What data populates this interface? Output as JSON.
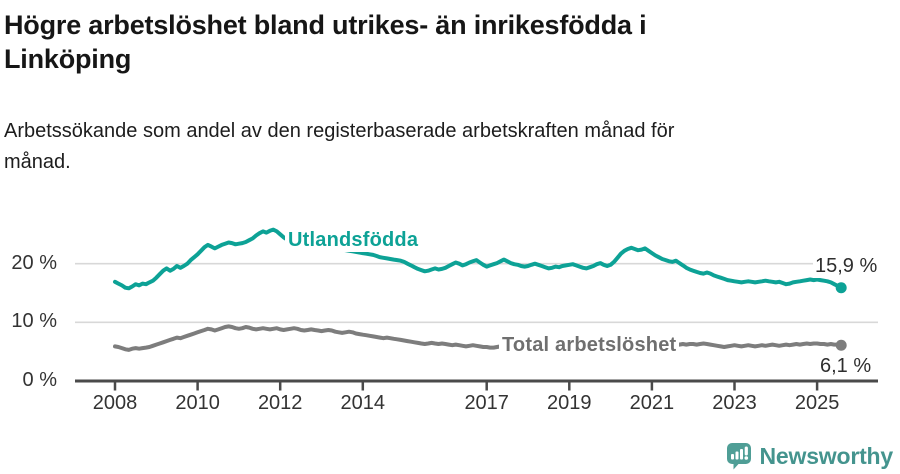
{
  "header": {
    "title_lines": [
      "Högre arbetslöshet bland utrikes- än inrikesfödda i",
      "Linköping"
    ],
    "subtitle_lines": [
      "Arbetssökande som andel av den registerbaserade arbetskraften månad för",
      "månad."
    ]
  },
  "branding": {
    "name": "Newsworthy",
    "icon": "newsworthy-chart-bubble-icon",
    "color": "#44948e"
  },
  "chart_data": {
    "type": "line",
    "title": "Högre arbetslöshet bland utrikes- än inrikesfödda i Linköping",
    "subtitle": "Arbetssökande som andel av den registerbaserade arbetskraften månad för månad.",
    "unit": "%",
    "x_start": "2008-01",
    "x_interval": "month",
    "x_end": "2025-08",
    "x_tick_years": [
      2008,
      2010,
      2012,
      2014,
      2017,
      2019,
      2021,
      2023,
      2025
    ],
    "y_ticks": [
      {
        "value": 0,
        "label": "0 %"
      },
      {
        "value": 10,
        "label": "10 %"
      },
      {
        "value": 20,
        "label": "20 %"
      }
    ],
    "ylim": [
      0,
      27.5
    ],
    "grid": "horizontal",
    "legend_position": "inline-on-line",
    "colors": {
      "axis": "#4a4a4a",
      "gridline": "#d8d8d8",
      "tick_text": "#333333"
    },
    "series": [
      {
        "name": "Utlandsfödda",
        "color": "#0da296",
        "end_value": 15.9,
        "end_value_label": "15,9 %",
        "values": [
          16.9,
          16.6,
          16.3,
          15.9,
          15.8,
          16.1,
          16.5,
          16.3,
          16.6,
          16.5,
          16.8,
          17.1,
          17.6,
          18.2,
          18.8,
          19.2,
          18.8,
          19.1,
          19.6,
          19.3,
          19.6,
          20.0,
          20.6,
          21.1,
          21.6,
          22.2,
          22.8,
          23.2,
          22.9,
          22.6,
          22.9,
          23.2,
          23.4,
          23.6,
          23.5,
          23.3,
          23.4,
          23.5,
          23.7,
          24.0,
          24.3,
          24.8,
          25.2,
          25.5,
          25.3,
          25.6,
          25.8,
          25.5,
          25.0,
          24.5,
          24.1,
          23.9,
          24.0,
          23.8,
          23.6,
          23.4,
          23.5,
          23.3,
          23.2,
          23.1,
          23.0,
          22.9,
          22.8,
          22.7,
          22.6,
          22.5,
          22.4,
          22.3,
          22.2,
          22.1,
          22.0,
          21.9,
          21.8,
          21.7,
          21.6,
          21.5,
          21.3,
          21.1,
          21.0,
          20.9,
          20.8,
          20.7,
          20.6,
          20.5,
          20.3,
          20.0,
          19.7,
          19.4,
          19.1,
          18.9,
          18.7,
          18.8,
          19.0,
          19.2,
          19.0,
          19.1,
          19.3,
          19.6,
          19.9,
          20.2,
          20.0,
          19.7,
          19.9,
          20.2,
          20.4,
          20.6,
          20.2,
          19.8,
          19.5,
          19.7,
          19.9,
          20.1,
          20.4,
          20.7,
          20.4,
          20.1,
          19.9,
          19.8,
          19.6,
          19.5,
          19.6,
          19.8,
          20.0,
          19.8,
          19.6,
          19.4,
          19.2,
          19.3,
          19.5,
          19.4,
          19.6,
          19.7,
          19.8,
          19.9,
          19.7,
          19.5,
          19.3,
          19.2,
          19.4,
          19.6,
          19.9,
          20.1,
          19.8,
          19.6,
          19.8,
          20.3,
          21.0,
          21.7,
          22.2,
          22.5,
          22.7,
          22.5,
          22.3,
          22.4,
          22.6,
          22.2,
          21.8,
          21.4,
          21.1,
          20.8,
          20.6,
          20.4,
          20.3,
          20.5,
          20.1,
          19.7,
          19.3,
          19.0,
          18.8,
          18.6,
          18.4,
          18.3,
          18.5,
          18.3,
          18.0,
          17.8,
          17.6,
          17.4,
          17.2,
          17.1,
          17.0,
          16.9,
          16.8,
          16.9,
          17.0,
          16.9,
          16.8,
          16.9,
          17.0,
          17.1,
          17.0,
          16.9,
          16.8,
          16.9,
          16.7,
          16.5,
          16.6,
          16.8,
          16.9,
          17.0,
          17.1,
          17.2,
          17.3,
          17.2,
          17.3,
          17.2,
          17.1,
          17.0,
          16.8,
          16.5,
          16.2,
          15.9
        ]
      },
      {
        "name": "Total arbetslöshet",
        "color": "#7d7d7d",
        "end_value": 6.1,
        "end_value_label": "6,1 %",
        "values": [
          5.9,
          5.8,
          5.6,
          5.4,
          5.3,
          5.5,
          5.6,
          5.5,
          5.6,
          5.7,
          5.8,
          6.0,
          6.2,
          6.4,
          6.6,
          6.8,
          7.0,
          7.2,
          7.4,
          7.3,
          7.5,
          7.7,
          7.9,
          8.1,
          8.3,
          8.5,
          8.7,
          8.9,
          8.8,
          8.6,
          8.8,
          9.0,
          9.2,
          9.3,
          9.2,
          9.0,
          8.9,
          9.0,
          9.2,
          9.1,
          8.9,
          8.8,
          8.9,
          9.0,
          8.9,
          8.8,
          8.9,
          9.0,
          8.8,
          8.7,
          8.8,
          8.9,
          9.0,
          8.9,
          8.7,
          8.6,
          8.7,
          8.8,
          8.7,
          8.6,
          8.5,
          8.6,
          8.7,
          8.6,
          8.4,
          8.3,
          8.2,
          8.3,
          8.4,
          8.3,
          8.1,
          8.0,
          7.9,
          7.8,
          7.7,
          7.6,
          7.5,
          7.4,
          7.3,
          7.4,
          7.3,
          7.2,
          7.1,
          7.0,
          6.9,
          6.8,
          6.7,
          6.6,
          6.5,
          6.4,
          6.3,
          6.4,
          6.5,
          6.4,
          6.3,
          6.4,
          6.3,
          6.2,
          6.1,
          6.2,
          6.1,
          6.0,
          5.9,
          6.0,
          6.1,
          6.0,
          5.9,
          5.8,
          5.8,
          5.7,
          5.7,
          5.8,
          5.9,
          5.8,
          5.7,
          5.8,
          5.9,
          5.8,
          5.9,
          6.0,
          5.9,
          5.8,
          5.7,
          5.8,
          5.9,
          6.0,
          5.9,
          5.8,
          5.9,
          6.0,
          6.1,
          6.0,
          6.0,
          6.1,
          6.0,
          5.9,
          6.0,
          6.1,
          6.2,
          6.1,
          6.2,
          6.3,
          6.4,
          6.5,
          6.4,
          6.3,
          6.4,
          6.3,
          6.2,
          6.3,
          6.2,
          6.1,
          6.2,
          6.1,
          6.2,
          6.1,
          6.2,
          6.1,
          6.2,
          6.3,
          6.2,
          6.1,
          6.2,
          6.3,
          6.2,
          6.3,
          6.2,
          6.3,
          6.3,
          6.2,
          6.3,
          6.4,
          6.3,
          6.2,
          6.1,
          6.0,
          5.9,
          5.8,
          5.9,
          6.0,
          6.1,
          6.0,
          5.9,
          6.0,
          6.1,
          6.0,
          5.9,
          6.0,
          6.1,
          6.0,
          6.1,
          6.2,
          6.1,
          6.0,
          6.1,
          6.2,
          6.1,
          6.2,
          6.3,
          6.2,
          6.3,
          6.4,
          6.3,
          6.4,
          6.4,
          6.3,
          6.3,
          6.2,
          6.3,
          6.2,
          6.2,
          6.1
        ]
      }
    ]
  }
}
